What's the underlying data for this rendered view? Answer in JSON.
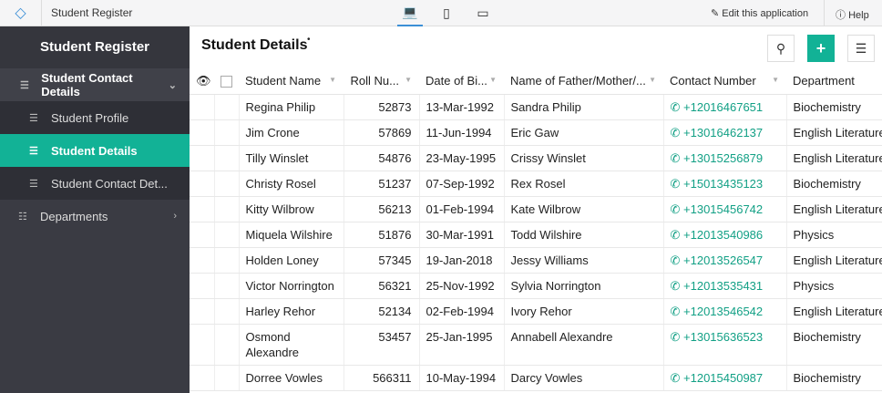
{
  "topbar": {
    "app_title": "Student Register",
    "edit_label": "Edit this application",
    "help_label": "Help",
    "devices": [
      "laptop-icon",
      "phone-icon",
      "tablet-icon"
    ]
  },
  "sidebar": {
    "title": "Student Register",
    "group": "Student Contact Details",
    "items": [
      "Student Profile",
      "Student Details",
      "Student Contact Det..."
    ],
    "active_index": 1,
    "departments": "Departments"
  },
  "main": {
    "title": "Student Details",
    "accent": "#12b296"
  },
  "table": {
    "columns": [
      "Student Name",
      "Roll Nu...",
      "Date of Bi...",
      "Name of Father/Mother/...",
      "Contact Number",
      "Department"
    ],
    "rows": [
      [
        "Regina Philip",
        "52873",
        "13-Mar-1992",
        "Sandra Philip",
        "+12016467651",
        "Biochemistry"
      ],
      [
        "Jim Crone",
        "57869",
        "11-Jun-1994",
        "Eric Gaw",
        "+13016462137",
        "English Literature"
      ],
      [
        "Tilly Winslet",
        "54876",
        "23-May-1995",
        "Crissy Winslet",
        "+13015256879",
        "English Literature"
      ],
      [
        "Christy Rosel",
        "51237",
        "07-Sep-1992",
        "Rex Rosel",
        "+15013435123",
        "Biochemistry"
      ],
      [
        "Kitty Wilbrow",
        "56213",
        "01-Feb-1994",
        "Kate Wilbrow",
        "+13015456742",
        "English Literature"
      ],
      [
        "Miquela Wilshire",
        "51876",
        "30-Mar-1991",
        "Todd Wilshire",
        "+12013540986",
        "Physics"
      ],
      [
        "Holden Loney",
        "57345",
        "19-Jan-2018",
        "Jessy Williams",
        "+12013526547",
        "English Literature"
      ],
      [
        "Victor Norrington",
        "56321",
        "25-Nov-1992",
        "Sylvia Norrington",
        "+12013535431",
        "Physics"
      ],
      [
        "Harley Rehor",
        "52134",
        "02-Feb-1994",
        "Ivory Rehor",
        "+12013546542",
        "English Literature"
      ],
      [
        "Osmond Alexandre",
        "53457",
        "25-Jan-1995",
        "Annabell Alexandre",
        "+13015636523",
        "Biochemistry"
      ],
      [
        "Dorree Vowles",
        "566311",
        "10-May-1994",
        "Darcy Vowles",
        "+12015450987",
        "Biochemistry"
      ]
    ]
  }
}
